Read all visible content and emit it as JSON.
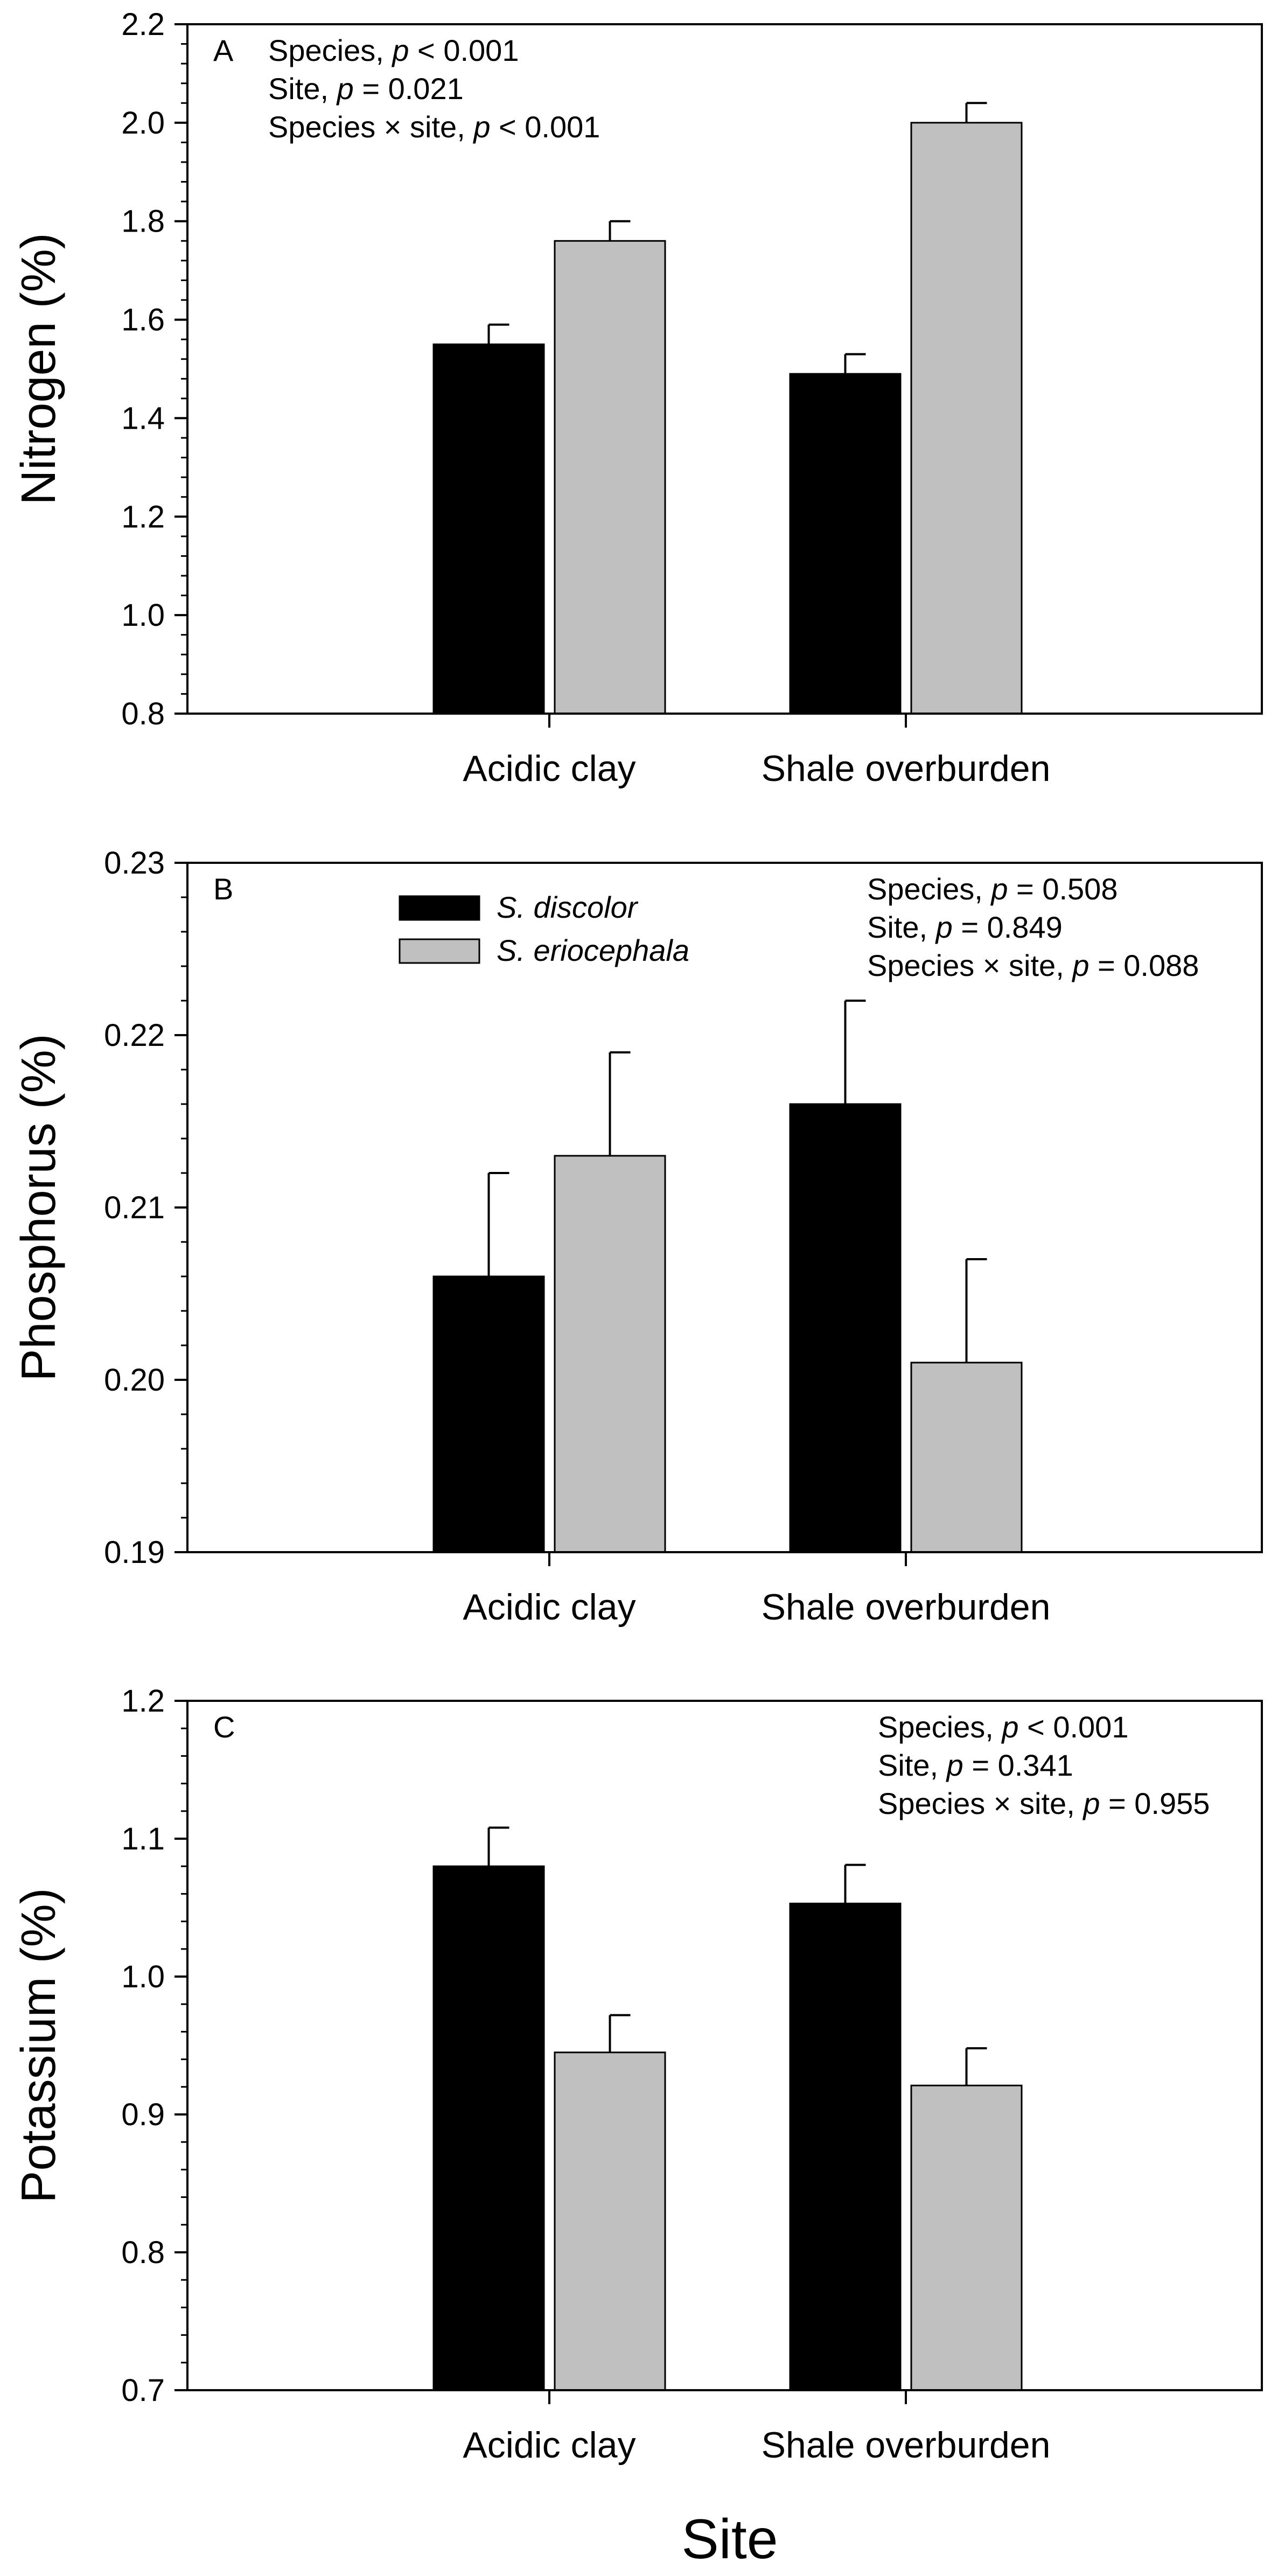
{
  "chart_data": [
    {
      "type": "bar",
      "panel_label": "A",
      "categories": [
        "Acidic clay",
        "Shale overburden"
      ],
      "series": [
        {
          "name": "S. discolor",
          "color": "#000000",
          "values": [
            1.55,
            1.49
          ],
          "errors": [
            0.04,
            0.04
          ]
        },
        {
          "name": "S. eriocephala",
          "color": "#c0c0c0",
          "values": [
            1.76,
            2.0
          ],
          "errors": [
            0.04,
            0.04
          ]
        }
      ],
      "ylabel": "Nitrogen (%)",
      "ylim": [
        0.8,
        2.2
      ],
      "yticks": [
        0.8,
        1.0,
        1.2,
        1.4,
        1.6,
        1.8,
        2.0,
        2.2
      ],
      "ytick_labels": [
        "0.8",
        "1.0",
        "1.2",
        "1.4",
        "1.6",
        "1.8",
        "2.0",
        "2.2"
      ],
      "minor_step": 0.04,
      "stats": [
        {
          "prefix": "Species, ",
          "p": "p",
          "suffix": " < 0.001"
        },
        {
          "prefix": "Site, ",
          "p": "p",
          "suffix": " = 0.021"
        },
        {
          "prefix": "Species × site, ",
          "p": "p",
          "suffix": " < 0.001"
        }
      ],
      "stats_position": "top-left",
      "legend": false
    },
    {
      "type": "bar",
      "panel_label": "B",
      "categories": [
        "Acidic clay",
        "Shale overburden"
      ],
      "series": [
        {
          "name": "S. discolor",
          "color": "#000000",
          "values": [
            0.206,
            0.216
          ],
          "errors": [
            0.006,
            0.006
          ]
        },
        {
          "name": "S. eriocephala",
          "color": "#c0c0c0",
          "values": [
            0.213,
            0.201
          ],
          "errors": [
            0.006,
            0.006
          ]
        }
      ],
      "ylabel": "Phosphorus (%)",
      "ylim": [
        0.19,
        0.23
      ],
      "yticks": [
        0.19,
        0.2,
        0.21,
        0.22,
        0.23
      ],
      "ytick_labels": [
        "0.19",
        "0.20",
        "0.21",
        "0.22",
        "0.23"
      ],
      "minor_step": 0.002,
      "stats": [
        {
          "prefix": "Species, ",
          "p": "p",
          "suffix": " = 0.508"
        },
        {
          "prefix": "Site, ",
          "p": "p",
          "suffix": " = 0.849"
        },
        {
          "prefix": "Species × site, ",
          "p": "p",
          "suffix": " = 0.088"
        }
      ],
      "stats_position": "top-right",
      "legend": true,
      "legend_position": "top-left"
    },
    {
      "type": "bar",
      "panel_label": "C",
      "categories": [
        "Acidic clay",
        "Shale overburden"
      ],
      "series": [
        {
          "name": "S. discolor",
          "color": "#000000",
          "values": [
            1.08,
            1.053
          ],
          "errors": [
            0.028,
            0.028
          ]
        },
        {
          "name": "S. eriocephala",
          "color": "#c0c0c0",
          "values": [
            0.945,
            0.921
          ],
          "errors": [
            0.027,
            0.027
          ]
        }
      ],
      "ylabel": "Potassium (%)",
      "ylim": [
        0.7,
        1.2
      ],
      "yticks": [
        0.7,
        0.8,
        0.9,
        1.0,
        1.1,
        1.2
      ],
      "ytick_labels": [
        "0.7",
        "0.8",
        "0.9",
        "1.0",
        "1.1",
        "1.2"
      ],
      "minor_step": 0.02,
      "stats": [
        {
          "prefix": "Species, ",
          "p": "p",
          "suffix": " < 0.001"
        },
        {
          "prefix": "Site, ",
          "p": "p",
          "suffix": " = 0.341"
        },
        {
          "prefix": "Species × site, ",
          "p": "p",
          "suffix": " = 0.955"
        }
      ],
      "stats_position": "top-right",
      "legend": false
    }
  ],
  "xlabel": "Site"
}
